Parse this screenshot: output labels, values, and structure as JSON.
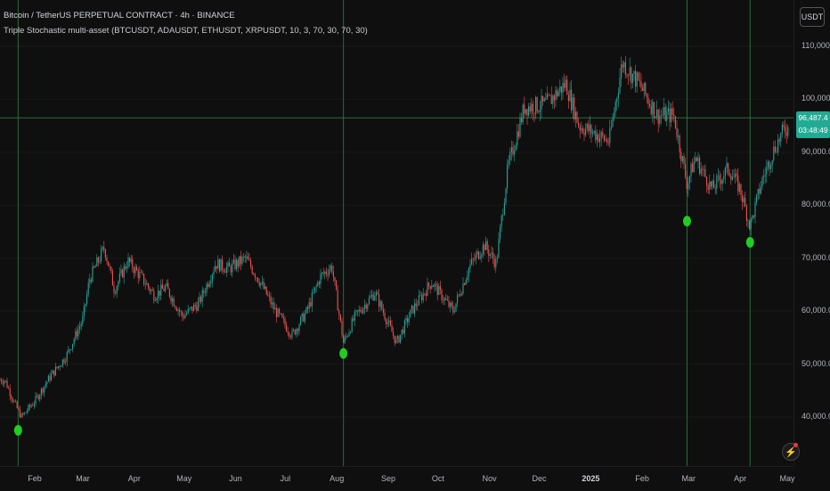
{
  "header": {
    "title": "Bitcoin / TetherUS PERPETUAL CONTRACT · 4h · BINANCE",
    "indicator": "Triple Stochastic multi-asset (BTCUSDT, ADAUSDT, ETHUSDT, XRPUSDT, 10, 3, 70, 30, 70, 30)"
  },
  "price_scale": {
    "currency": "USDT",
    "ticks": [
      "110,000.0",
      "100,000.0",
      "90,000.0",
      "80,000.0",
      "70,000.0",
      "60,000.0",
      "50,000.0",
      "40,000.0"
    ],
    "current_price": "96,487.4",
    "countdown": "03:48:49"
  },
  "time_axis": {
    "ticks": [
      "Feb",
      "Mar",
      "Apr",
      "May",
      "Jun",
      "Jul",
      "Aug",
      "Sep",
      "Oct",
      "Nov",
      "Dec",
      "2025",
      "Feb",
      "Mar",
      "Apr",
      "May"
    ]
  },
  "colors": {
    "up": "#26a69a",
    "down": "#ef5350",
    "signal": "#22cc22",
    "crosshair": "#2e6b3a",
    "price_label_bg": "#22ab94"
  },
  "icons": {
    "alert": "lightning-icon"
  },
  "chart_data": {
    "type": "candlestick",
    "symbol": "BTCUSDT",
    "interval": "4h",
    "ylim": [
      35000,
      115000
    ],
    "x": [
      "2024-01-14",
      "2024-01-20",
      "2024-01-24",
      "2024-02-01",
      "2024-02-10",
      "2024-02-20",
      "2024-03-01",
      "2024-03-05",
      "2024-03-14",
      "2024-03-20",
      "2024-03-28",
      "2024-04-05",
      "2024-04-13",
      "2024-04-20",
      "2024-04-30",
      "2024-05-10",
      "2024-05-20",
      "2024-05-28",
      "2024-06-07",
      "2024-06-15",
      "2024-06-24",
      "2024-07-05",
      "2024-07-14",
      "2024-07-22",
      "2024-07-29",
      "2024-08-05",
      "2024-08-12",
      "2024-08-24",
      "2024-09-06",
      "2024-09-15",
      "2024-09-27",
      "2024-10-10",
      "2024-10-20",
      "2024-10-29",
      "2024-11-05",
      "2024-11-12",
      "2024-11-22",
      "2024-12-05",
      "2024-12-17",
      "2024-12-25",
      "2025-01-01",
      "2025-01-12",
      "2025-01-20",
      "2025-01-30",
      "2025-02-10",
      "2025-02-20",
      "2025-02-28",
      "2025-03-05",
      "2025-03-15",
      "2025-03-25",
      "2025-04-01",
      "2025-04-07",
      "2025-04-14",
      "2025-04-22",
      "2025-04-28"
    ],
    "close_approx": [
      47000,
      42500,
      40000,
      43000,
      47500,
      51500,
      58500,
      66000,
      72000,
      64000,
      69500,
      66500,
      63000,
      64500,
      59000,
      61500,
      69000,
      68000,
      70000,
      66000,
      60500,
      55500,
      60000,
      66500,
      68500,
      54000,
      59000,
      63500,
      54000,
      60000,
      65500,
      60000,
      68500,
      72500,
      69000,
      87000,
      98500,
      99000,
      103000,
      95000,
      94000,
      92000,
      107000,
      103000,
      97000,
      97000,
      84000,
      89000,
      83000,
      87000,
      83000,
      76000,
      84500,
      91000,
      94500
    ],
    "signals": [
      {
        "date": "2024-01-22",
        "label": "signal"
      },
      {
        "date": "2024-08-05",
        "label": "signal"
      },
      {
        "date": "2025-02-28",
        "label": "signal"
      },
      {
        "date": "2025-04-07",
        "label": "signal"
      }
    ],
    "current_price": 96487.4,
    "crosshair_price": 96487.4
  }
}
